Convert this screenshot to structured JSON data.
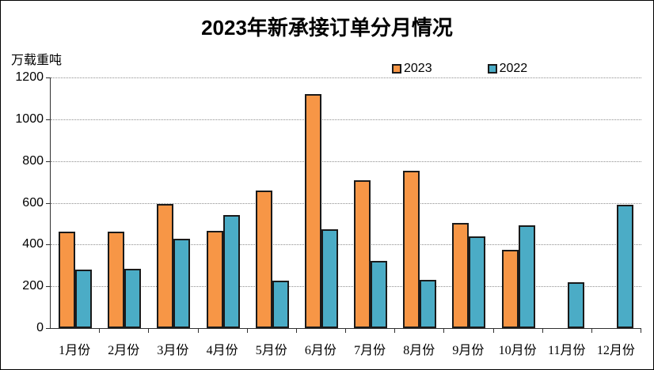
{
  "title": "2023年新承接订单分月情况",
  "y_axis_unit": "万载重吨",
  "legend": [
    {
      "label": "2023",
      "color": "#F79646"
    },
    {
      "label": "2022",
      "color": "#4BACC6"
    }
  ],
  "colors": {
    "bar_2023": "#F79646",
    "bar_2022": "#4BACC6",
    "bar_border": "#1A1A1A",
    "axis": "#303030",
    "gridline": "#8F8F8F",
    "text": "#000000",
    "background": "#FFFFFF"
  },
  "chart_data": {
    "type": "bar",
    "title": "2023年新承接订单分月情况",
    "ylabel": "万载重吨",
    "categories": [
      "1月份",
      "2月份",
      "3月份",
      "4月份",
      "5月份",
      "6月份",
      "7月份",
      "8月份",
      "9月份",
      "10月份",
      "11月份",
      "12月份"
    ],
    "series": [
      {
        "name": "2023",
        "color": "#F79646",
        "values": [
          460,
          463,
          593,
          467,
          659,
          1122,
          706,
          753,
          502,
          373,
          null,
          null
        ]
      },
      {
        "name": "2022",
        "color": "#4BACC6",
        "values": [
          281,
          283,
          427,
          541,
          226,
          472,
          322,
          230,
          438,
          493,
          218,
          590
        ]
      }
    ],
    "ylim": [
      0,
      1200
    ],
    "yticks": [
      0,
      200,
      400,
      600,
      800,
      1000,
      1200
    ],
    "grid": "horizontal-dotted",
    "legend_position": "top-center"
  }
}
